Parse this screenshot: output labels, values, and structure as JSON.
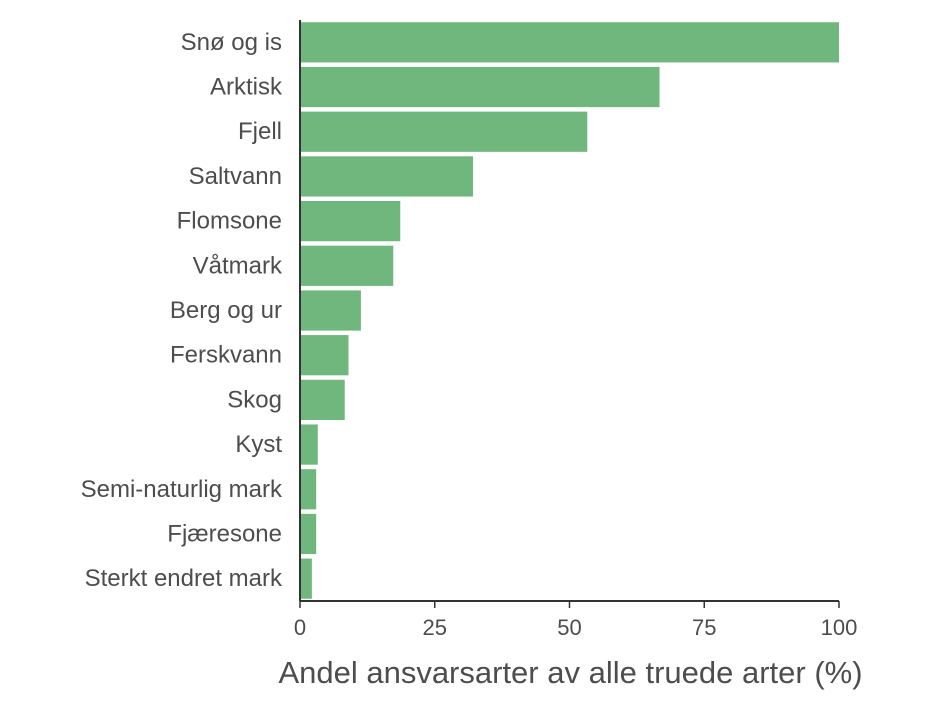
{
  "chart_data": {
    "type": "bar",
    "orientation": "horizontal",
    "categories": [
      "Snø og is",
      "Arktisk",
      "Fjell",
      "Saltvann",
      "Flomsone",
      "Våtmark",
      "Berg og ur",
      "Ferskvann",
      "Skog",
      "Kyst",
      "Semi-naturlig mark",
      "Fjæresone",
      "Sterkt endret mark"
    ],
    "values": [
      100,
      66.7,
      53.3,
      32.1,
      18.6,
      17.3,
      11.3,
      9.0,
      8.3,
      3.3,
      3.0,
      3.0,
      2.2
    ],
    "xlabel": "Andel ansvarsarter av alle truede arter (%)",
    "ylabel": "",
    "title": "",
    "xlim": [
      0,
      100
    ],
    "xticks": [
      0,
      25,
      50,
      75,
      100
    ],
    "grid": false,
    "legend": "none",
    "bar_color": "#70b77e"
  }
}
